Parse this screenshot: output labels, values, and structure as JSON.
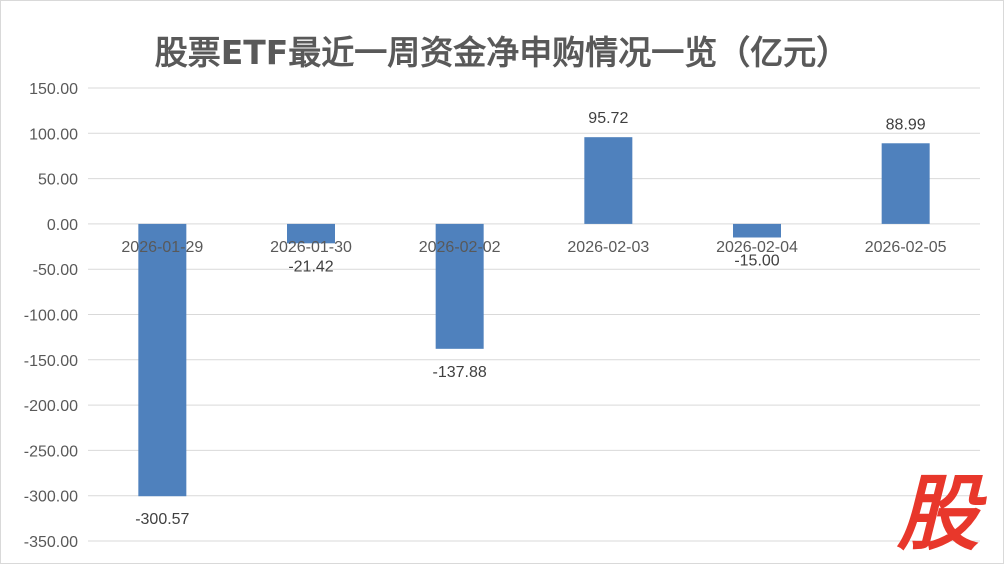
{
  "title": "股票ETF最近一周资金净申购情况一览（亿元）",
  "watermark": "股",
  "colors": {
    "bar": "#4f81bd",
    "grid": "#d9d9d9",
    "text": "#595959",
    "logo": "#e8372b"
  },
  "chart_data": {
    "type": "bar",
    "title": "股票ETF最近一周资金净申购情况一览（亿元）",
    "categories": [
      "2026-01-29",
      "2026-01-30",
      "2026-02-02",
      "2026-02-03",
      "2026-02-04",
      "2026-02-05"
    ],
    "values": [
      -300.57,
      -21.42,
      -137.88,
      95.72,
      -15.0,
      88.99
    ],
    "data_labels": [
      "-300.57",
      "-21.42",
      "-137.88",
      "95.72",
      "-15.00",
      "88.99"
    ],
    "y_ticks": [
      "150.00",
      "100.00",
      "50.00",
      "0.00",
      "-50.00",
      "-100.00",
      "-150.00",
      "-200.00",
      "-250.00",
      "-300.00",
      "-350.00"
    ],
    "ylim": [
      -350,
      150
    ],
    "grid": true,
    "legend": "none"
  }
}
